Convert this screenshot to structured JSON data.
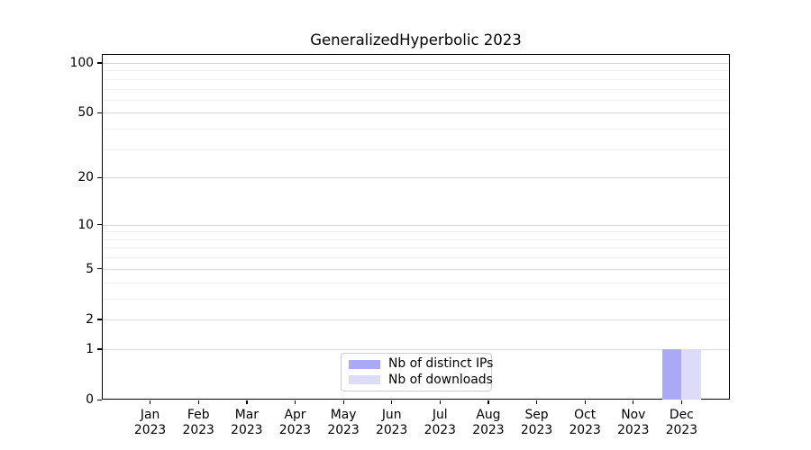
{
  "title": "GeneralizedHyperbolic 2023",
  "legend": {
    "items": [
      {
        "label": "Nb of distinct IPs",
        "color": "#a9a9f5"
      },
      {
        "label": "Nb of downloads",
        "color": "#dcdcf8"
      }
    ]
  },
  "colors": {
    "bar_distinct_ips": "#a9a9f5",
    "bar_downloads": "#dcdcf8",
    "grid_major": "#d9d9d9",
    "grid_minor": "#f0f0f0",
    "spine": "#000000",
    "background": "#ffffff"
  },
  "chart_data": {
    "type": "bar",
    "title": "GeneralizedHyperbolic 2023",
    "categories": [
      "Jan",
      "Feb",
      "Mar",
      "Apr",
      "May",
      "Jun",
      "Jul",
      "Aug",
      "Sep",
      "Oct",
      "Nov",
      "Dec"
    ],
    "category_year": "2023",
    "series": [
      {
        "name": "Nb of distinct IPs",
        "color": "#a9a9f5",
        "values": [
          0,
          0,
          0,
          0,
          0,
          0,
          0,
          0,
          0,
          0,
          0,
          1
        ]
      },
      {
        "name": "Nb of downloads",
        "color": "#dcdcf8",
        "values": [
          0,
          0,
          0,
          0,
          0,
          0,
          0,
          0,
          0,
          0,
          0,
          1
        ]
      }
    ],
    "xlabel": "",
    "ylabel": "",
    "yscale": "log1p",
    "ylim": [
      0,
      113
    ],
    "yticks": [
      0,
      1,
      2,
      5,
      10,
      20,
      50,
      100
    ],
    "yticks_minor": [
      3,
      4,
      6,
      7,
      8,
      9,
      30,
      40,
      60,
      70,
      80,
      90
    ],
    "grid": true,
    "legend_position": "lower center",
    "bar_width_fraction": 0.4
  }
}
